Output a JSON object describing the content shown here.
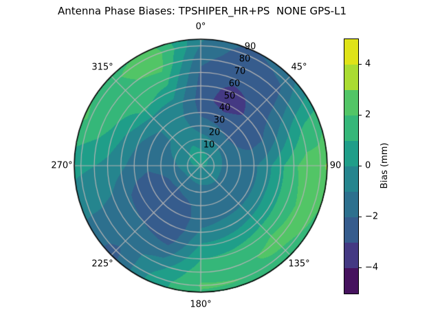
{
  "title": "Antenna Phase Biases: TPSHIPER_HR+PS  NONE GPS-L1",
  "chart_data": {
    "type": "heatmap",
    "projection": "polar",
    "theta_zero_location": "top",
    "theta_direction": "clockwise",
    "grid": true,
    "grid_color": "#b4b4b4",
    "theta_ticks": [
      {
        "angle_deg": 0,
        "label": "0°"
      },
      {
        "angle_deg": 45,
        "label": "45°"
      },
      {
        "angle_deg": 90,
        "label": "90"
      },
      {
        "angle_deg": 135,
        "label": "135°"
      },
      {
        "angle_deg": 180,
        "label": "180°"
      },
      {
        "angle_deg": 225,
        "label": "225°"
      },
      {
        "angle_deg": 270,
        "label": "270°"
      },
      {
        "angle_deg": 315,
        "label": "315°"
      }
    ],
    "r_ticks": [
      {
        "value": 10,
        "label": "10"
      },
      {
        "value": 20,
        "label": "20"
      },
      {
        "value": 30,
        "label": "30"
      },
      {
        "value": 40,
        "label": "40"
      },
      {
        "value": 50,
        "label": "50"
      },
      {
        "value": 60,
        "label": "60"
      },
      {
        "value": 70,
        "label": "70"
      },
      {
        "value": 80,
        "label": "80"
      },
      {
        "value": 90,
        "label": "90"
      }
    ],
    "r_label_angle_deg": 22.5,
    "r_max": 95,
    "levels": [
      -5,
      -4,
      -3,
      -2,
      -1,
      0,
      1,
      2,
      3,
      4,
      5
    ],
    "band_colors": [
      "#46125e",
      "#443983",
      "#365c8d",
      "#2d708e",
      "#25858e",
      "#1f9e89",
      "#35b779",
      "#52c566",
      "#aadc32",
      "#dfe318"
    ],
    "azimuth_grid_deg": [
      0,
      22.5,
      45,
      67.5,
      90,
      112.5,
      135,
      157.5,
      180,
      202.5,
      225,
      247.5,
      270,
      292.5,
      315,
      337.5
    ],
    "zenith_grid_deg": [
      0,
      10,
      20,
      30,
      40,
      50,
      60,
      70,
      80,
      90,
      95
    ],
    "bias_grid_mm": [
      [
        0.5,
        0.2,
        -0.6,
        -1.5,
        -2.2,
        -2.5,
        -2.4,
        -2.2,
        -1.8,
        -1.1,
        -0.9
      ],
      [
        0.5,
        0.0,
        -0.9,
        -1.8,
        -2.6,
        -3.6,
        -3.3,
        -2.7,
        -2.6,
        -2.5,
        -2.2
      ],
      [
        0.5,
        -0.2,
        -1.2,
        -2.2,
        -2.6,
        -2.8,
        -2.7,
        -2.6,
        -2.3,
        -1.7,
        -1.4
      ],
      [
        0.4,
        -0.4,
        -1.3,
        -1.9,
        -2.2,
        -2.0,
        -1.2,
        -0.2,
        0.8,
        1.3,
        1.5
      ],
      [
        0.3,
        -0.5,
        -1.4,
        -1.6,
        -1.2,
        -0.3,
        0.8,
        1.8,
        2.6,
        2.6,
        3.2
      ],
      [
        0.2,
        -0.6,
        -1.4,
        -1.6,
        -1.2,
        -0.2,
        0.8,
        1.6,
        2.2,
        2.2,
        1.9
      ],
      [
        0.1,
        -0.6,
        -1.3,
        -1.5,
        -1.2,
        -0.3,
        0.6,
        1.8,
        2.3,
        1.8,
        1.6
      ],
      [
        0.1,
        -0.7,
        -1.3,
        -1.4,
        -1.2,
        -0.5,
        0.4,
        1.3,
        1.8,
        2.0,
        1.8
      ],
      [
        0.0,
        -0.7,
        -1.4,
        -1.6,
        -1.4,
        -0.8,
        0.2,
        1.0,
        1.7,
        2.1,
        1.9
      ],
      [
        0.0,
        -0.8,
        -1.5,
        -2.2,
        -2.6,
        -2.7,
        -2.4,
        -1.5,
        -0.4,
        0.4,
        0.6
      ],
      [
        0.1,
        -0.8,
        -1.7,
        -2.5,
        -2.8,
        -2.8,
        -2.0,
        -1.5,
        -1.6,
        -2.3,
        -2.4
      ],
      [
        0.2,
        -0.7,
        -1.6,
        -2.3,
        -2.6,
        -2.4,
        -1.8,
        -1.2,
        -1.0,
        -0.9,
        -0.8
      ],
      [
        0.4,
        -0.4,
        -1.2,
        -1.6,
        -1.8,
        -1.4,
        -0.8,
        -0.3,
        0.0,
        0.2,
        0.3
      ],
      [
        0.5,
        -0.1,
        -0.8,
        -1.3,
        -1.4,
        -0.9,
        -0.1,
        0.8,
        1.5,
        1.9,
        2.1
      ],
      [
        0.6,
        0.2,
        -0.5,
        -0.9,
        -0.9,
        -0.3,
        1.2,
        1.6,
        1.8,
        1.9,
        1.8
      ],
      [
        0.6,
        0.4,
        -0.2,
        -0.7,
        -0.8,
        -0.4,
        0.5,
        1.4,
        2.3,
        2.6,
        2.2
      ]
    ],
    "colorbar": {
      "label": "Bias (mm)",
      "range": [
        -5,
        5
      ],
      "tick_values": [
        4,
        2,
        0,
        -2,
        -4
      ],
      "tick_labels": [
        "4",
        "2",
        "0",
        "−2",
        "−4"
      ]
    }
  }
}
